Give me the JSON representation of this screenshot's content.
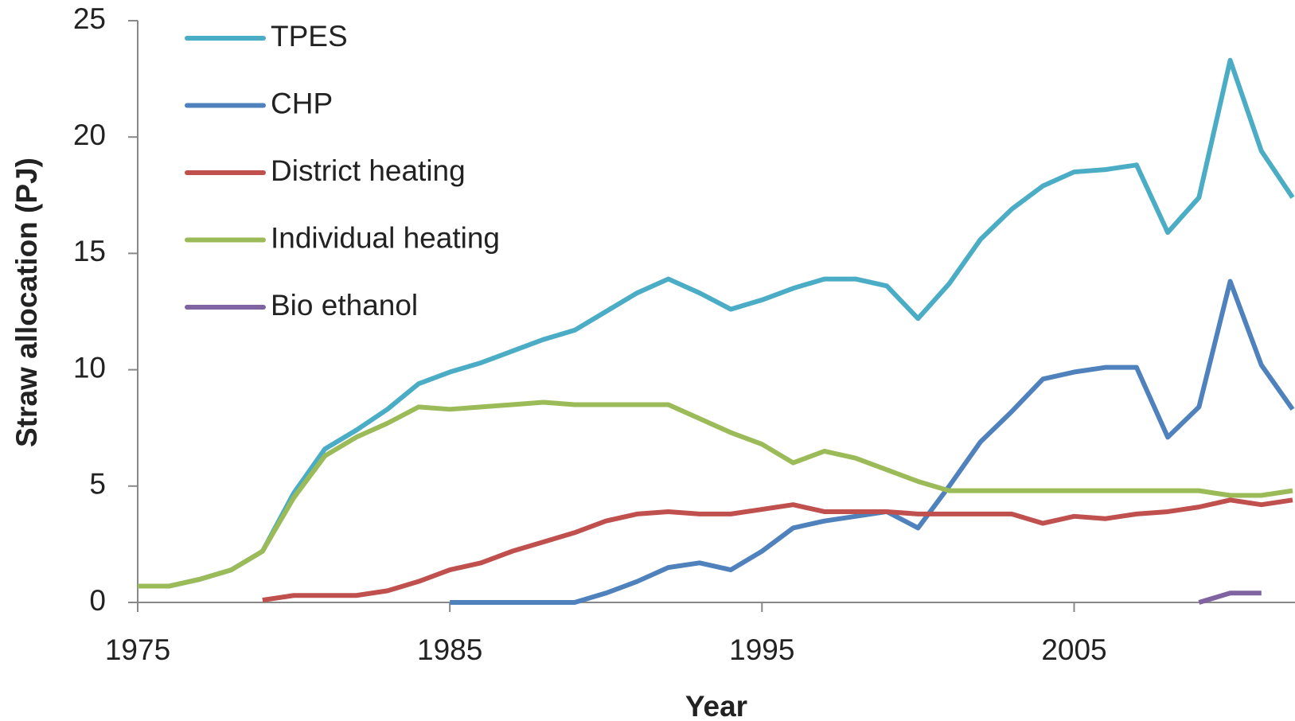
{
  "chart_data": {
    "type": "line",
    "xlabel": "Year",
    "ylabel": "Straw allocation (PJ)",
    "x": [
      1975,
      1976,
      1977,
      1978,
      1979,
      1980,
      1981,
      1982,
      1983,
      1984,
      1985,
      1986,
      1987,
      1988,
      1989,
      1990,
      1991,
      1992,
      1993,
      1994,
      1995,
      1996,
      1997,
      1998,
      1999,
      2000,
      2001,
      2002,
      2003,
      2004,
      2005,
      2006,
      2007,
      2008,
      2009,
      2010,
      2011,
      2012
    ],
    "series": [
      {
        "name": "TPES",
        "color": "#4bacc6",
        "values": [
          0.7,
          0.7,
          1.0,
          1.4,
          2.2,
          4.7,
          6.6,
          7.4,
          8.3,
          9.4,
          9.9,
          10.3,
          10.8,
          11.3,
          11.7,
          12.5,
          13.3,
          13.9,
          13.3,
          12.6,
          13.0,
          13.5,
          13.9,
          13.9,
          13.6,
          12.2,
          13.7,
          15.6,
          16.9,
          17.9,
          18.5,
          18.6,
          18.8,
          15.9,
          17.4,
          23.3,
          19.4,
          17.4
        ]
      },
      {
        "name": "CHP",
        "color": "#4f81bd",
        "values": [
          null,
          null,
          null,
          null,
          null,
          null,
          null,
          null,
          null,
          null,
          0,
          0,
          0,
          0,
          0,
          0.4,
          0.9,
          1.5,
          1.7,
          1.4,
          2.2,
          3.2,
          3.5,
          3.7,
          3.9,
          3.2,
          5.0,
          6.9,
          8.2,
          9.6,
          9.9,
          10.1,
          10.1,
          7.1,
          8.4,
          13.8,
          10.2,
          8.3
        ]
      },
      {
        "name": "District heating",
        "color": "#c0504d",
        "values": [
          null,
          null,
          null,
          null,
          0.1,
          0.3,
          0.3,
          0.3,
          0.5,
          0.9,
          1.4,
          1.7,
          2.2,
          2.6,
          3.0,
          3.5,
          3.8,
          3.9,
          3.8,
          3.8,
          4.0,
          4.2,
          3.9,
          3.9,
          3.9,
          3.8,
          3.8,
          3.8,
          3.8,
          3.4,
          3.7,
          3.6,
          3.8,
          3.9,
          4.1,
          4.4,
          4.2,
          4.4
        ]
      },
      {
        "name": "Individual heating",
        "color": "#9bbb59",
        "values": [
          0.7,
          0.7,
          1.0,
          1.4,
          2.2,
          4.5,
          6.3,
          7.1,
          7.7,
          8.4,
          8.3,
          8.4,
          8.5,
          8.6,
          8.5,
          8.5,
          8.5,
          8.5,
          7.9,
          7.3,
          6.8,
          6.0,
          6.5,
          6.2,
          5.7,
          5.2,
          4.8,
          4.8,
          4.8,
          4.8,
          4.8,
          4.8,
          4.8,
          4.8,
          4.8,
          4.6,
          4.6,
          4.8
        ]
      },
      {
        "name": "Bio ethanol",
        "color": "#8064a2",
        "values": [
          null,
          null,
          null,
          null,
          null,
          null,
          null,
          null,
          null,
          null,
          null,
          null,
          null,
          null,
          null,
          null,
          null,
          null,
          null,
          null,
          null,
          null,
          null,
          null,
          null,
          null,
          null,
          null,
          null,
          null,
          null,
          null,
          null,
          null,
          0,
          0.4,
          0.4,
          null
        ]
      }
    ],
    "xlim": [
      1975,
      2012
    ],
    "xticks": [
      1975,
      1985,
      1995,
      2005
    ],
    "ylim": [
      0,
      25
    ],
    "yticks": [
      0,
      5,
      10,
      15,
      20,
      25
    ],
    "legend": "upper left",
    "grid": false
  }
}
